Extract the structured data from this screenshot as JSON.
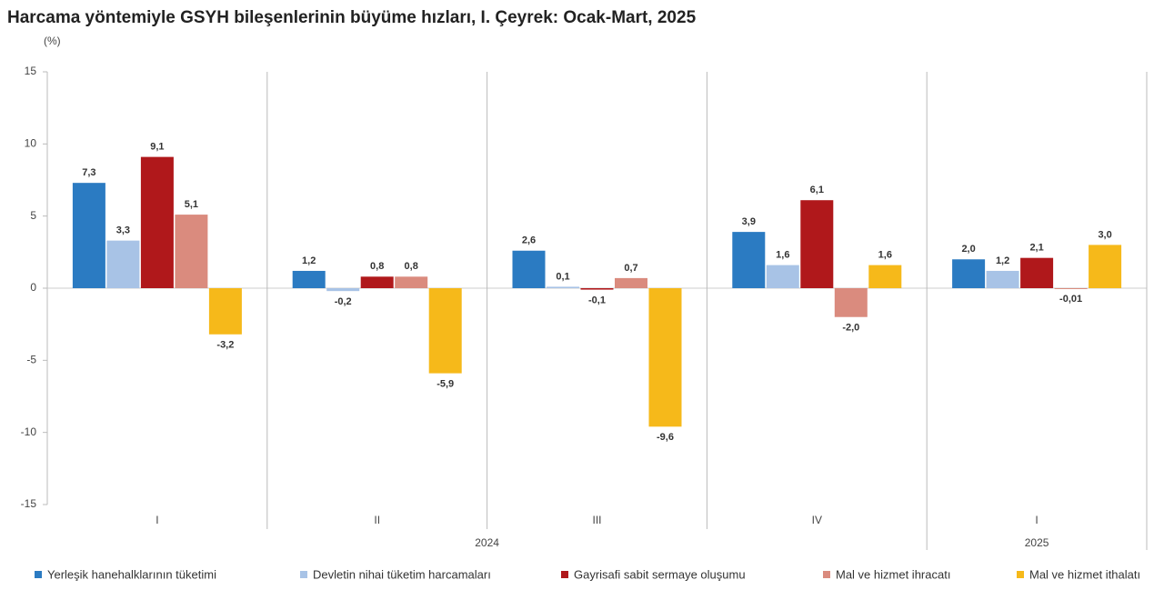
{
  "chart_data": {
    "type": "bar",
    "title": "Harcama yöntemiyle GSYH bileşenlerinin büyüme hızları, I. Çeyrek: Ocak-Mart, 2025",
    "y_label": "(%)",
    "categories": [
      "I",
      "II",
      "III",
      "IV",
      "I"
    ],
    "year_groups": [
      {
        "name": "2024",
        "count": 4
      },
      {
        "name": "2025",
        "count": 1
      }
    ],
    "series": [
      {
        "name": "Yerleşik hanehalklarının tüketimi",
        "color": "#2b7bc2",
        "values": [
          7.3,
          1.2,
          2.6,
          3.9,
          2.0
        ],
        "value_labels": [
          "7,3",
          "1,2",
          "2,6",
          "3,9",
          "2,0"
        ]
      },
      {
        "name": "Devletin nihai tüketim harcamaları",
        "color": "#a8c3e6",
        "values": [
          3.3,
          -0.2,
          0.1,
          1.6,
          1.2
        ],
        "value_labels": [
          "3,3",
          "-0,2",
          "0,1",
          "1,6",
          "1,2"
        ]
      },
      {
        "name": "Gayrisafi sabit sermaye oluşumu",
        "color": "#b0181b",
        "values": [
          9.1,
          0.8,
          -0.1,
          6.1,
          2.1
        ],
        "value_labels": [
          "9,1",
          "0,8",
          "-0,1",
          "6,1",
          "2,1"
        ]
      },
      {
        "name": "Mal ve hizmet ihracatı",
        "color": "#da8b7e",
        "values": [
          5.1,
          0.8,
          0.7,
          -2.0,
          -0.01
        ],
        "value_labels": [
          "5,1",
          "0,8",
          "0,7",
          "-2,0",
          "-0,01"
        ]
      },
      {
        "name": "Mal ve hizmet ithalatı",
        "color": "#f6b91a",
        "values": [
          -3.2,
          -5.9,
          -9.6,
          1.6,
          3.0
        ],
        "value_labels": [
          "-3,2",
          "-5,9",
          "-9,6",
          "1,6",
          "3,0"
        ]
      }
    ],
    "ylim": [
      -15,
      15
    ],
    "yticks": [
      15,
      10,
      5,
      0,
      -5,
      -10,
      -15
    ],
    "grid": false
  }
}
